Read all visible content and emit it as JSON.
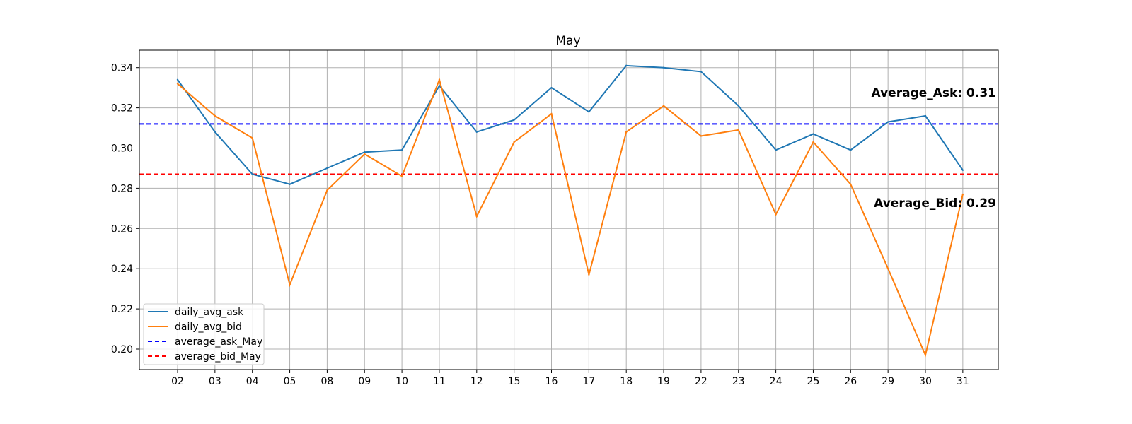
{
  "chart_data": {
    "type": "line",
    "title": "May",
    "xlabel": "",
    "ylabel": "",
    "categories": [
      "02",
      "03",
      "04",
      "05",
      "08",
      "09",
      "10",
      "11",
      "12",
      "15",
      "16",
      "17",
      "18",
      "19",
      "22",
      "23",
      "24",
      "25",
      "26",
      "29",
      "30",
      "31"
    ],
    "ylim": [
      0.19,
      0.349
    ],
    "yticks": [
      0.2,
      0.22,
      0.24,
      0.26,
      0.28,
      0.3,
      0.32,
      0.34
    ],
    "ytick_labels": [
      "0.20",
      "0.22",
      "0.24",
      "0.26",
      "0.28",
      "0.30",
      "0.32",
      "0.34"
    ],
    "grid": true,
    "legend_position": "lower-left",
    "series": [
      {
        "name": "daily_avg_ask",
        "color": "#1f77b4",
        "style": "solid",
        "values": [
          0.334,
          0.308,
          0.287,
          0.282,
          0.29,
          0.298,
          0.299,
          0.331,
          0.308,
          0.314,
          0.33,
          0.318,
          0.341,
          0.34,
          0.338,
          0.321,
          0.299,
          0.307,
          0.299,
          0.313,
          0.316,
          0.289
        ]
      },
      {
        "name": "daily_avg_bid",
        "color": "#ff7f0e",
        "style": "solid",
        "values": [
          0.332,
          0.316,
          0.305,
          0.232,
          0.279,
          0.297,
          0.286,
          0.334,
          0.266,
          0.303,
          0.317,
          0.237,
          0.308,
          0.321,
          0.306,
          0.309,
          0.267,
          0.303,
          0.282,
          0.24,
          0.197,
          0.277
        ]
      }
    ],
    "reference_lines": [
      {
        "name": "average_ask_May",
        "value": 0.312,
        "color": "#0000ff",
        "style": "dashed",
        "annotation": "Average_Ask: 0.31"
      },
      {
        "name": "average_bid_May",
        "value": 0.287,
        "color": "#ff0000",
        "style": "dashed",
        "annotation": "Average_Bid: 0.29"
      }
    ]
  }
}
